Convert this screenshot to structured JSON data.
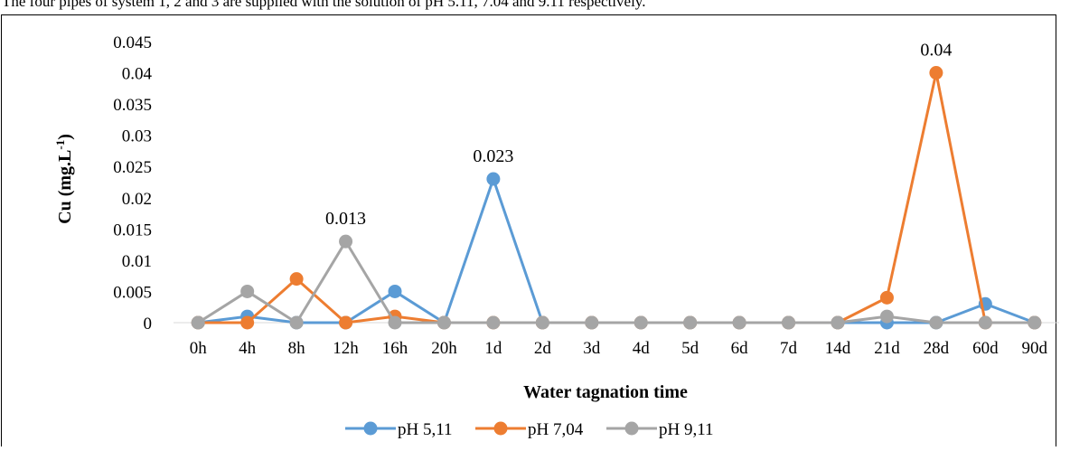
{
  "caption": "The four pipes of system 1, 2 and 3 are supplied with the solution of pH 5.11, 7.04 and 9.11 respectively.",
  "chart_data": {
    "type": "line",
    "title": "",
    "xlabel": "Water tagnation time",
    "ylabel_main": "Cu (mg.L",
    "ylabel_sup": "-1",
    "ylabel_close": ")",
    "ylim": [
      0,
      0.045
    ],
    "yticks": [
      0,
      0.005,
      0.01,
      0.015,
      0.02,
      0.025,
      0.03,
      0.035,
      0.04,
      0.045
    ],
    "ytick_labels": [
      "0",
      "0.005",
      "0.01",
      "0.015",
      "0.02",
      "0.025",
      "0.03",
      "0.035",
      "0.04",
      "0.045"
    ],
    "categories": [
      "0h",
      "4h",
      "8h",
      "12h",
      "16h",
      "20h",
      "1d",
      "2d",
      "3d",
      "4d",
      "5d",
      "6d",
      "7d",
      "14d",
      "21d",
      "28d",
      "60d",
      "90d"
    ],
    "legend_position": "bottom",
    "grid": false,
    "series": [
      {
        "name": "pH 5,11",
        "color": "#5B9BD5",
        "values": [
          0,
          0.001,
          0,
          0,
          0.005,
          0,
          0.023,
          0,
          0,
          0,
          0,
          0,
          0,
          0,
          0,
          0,
          0.003,
          0
        ]
      },
      {
        "name": "pH 7,04",
        "color": "#ED7D31",
        "values": [
          0,
          0,
          0.007,
          0,
          0.001,
          0,
          0,
          0,
          0,
          0,
          0,
          0,
          0,
          0,
          0.004,
          0.04,
          0,
          0
        ]
      },
      {
        "name": "pH 9,11",
        "color": "#A5A5A5",
        "values": [
          0,
          0.005,
          0,
          0.013,
          0,
          0,
          0,
          0,
          0,
          0,
          0,
          0,
          0,
          0,
          0.001,
          0,
          0,
          0
        ]
      }
    ],
    "data_labels": [
      {
        "series": 2,
        "index": 3,
        "text": "0.013"
      },
      {
        "series": 0,
        "index": 6,
        "text": "0.023"
      },
      {
        "series": 1,
        "index": 15,
        "text": "0.04"
      }
    ]
  }
}
